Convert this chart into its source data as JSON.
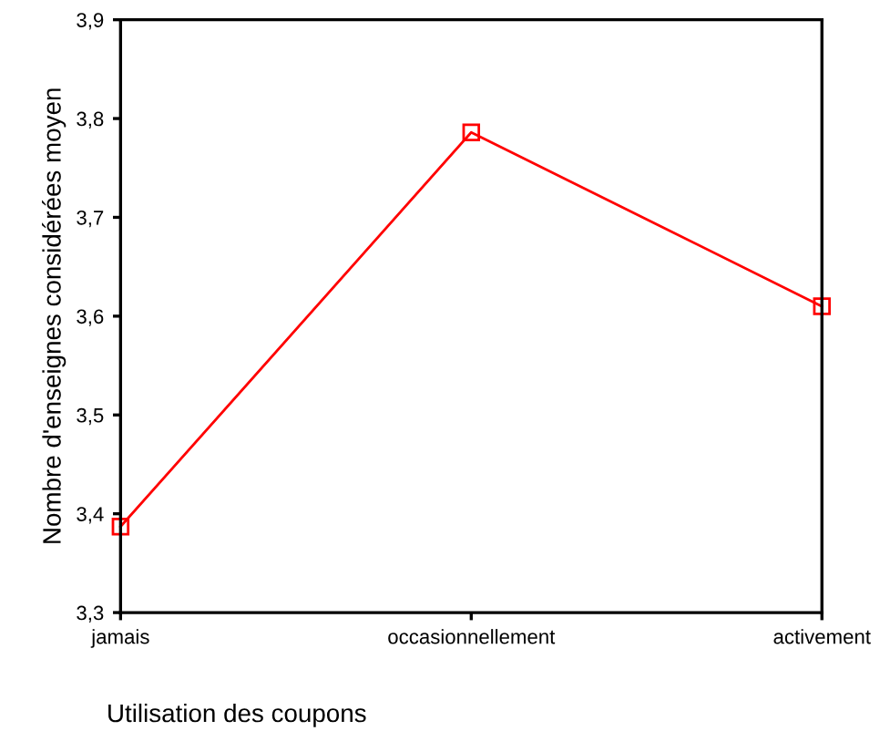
{
  "chart_data": {
    "type": "line",
    "xlabel": "Utilisation des coupons",
    "ylabel": "Nombre d'enseignes considérées moyen",
    "categories": [
      "jamais",
      "occasionnellement",
      "activement"
    ],
    "series": [
      {
        "color": "#ff0000",
        "values": [
          3.387,
          3.786,
          3.61
        ]
      }
    ],
    "marker": "square",
    "line_style": "solid",
    "grid": false,
    "legend": false,
    "ylim": [
      3.3,
      3.9
    ],
    "yticks": [
      {
        "value": 3.3,
        "label": "3,3"
      },
      {
        "value": 3.4,
        "label": "3,4"
      },
      {
        "value": 3.5,
        "label": "3,5"
      },
      {
        "value": 3.6,
        "label": "3,6"
      },
      {
        "value": 3.7,
        "label": "3,7"
      },
      {
        "value": 3.8,
        "label": "3,8"
      },
      {
        "value": 3.9,
        "label": "3,9"
      }
    ]
  }
}
